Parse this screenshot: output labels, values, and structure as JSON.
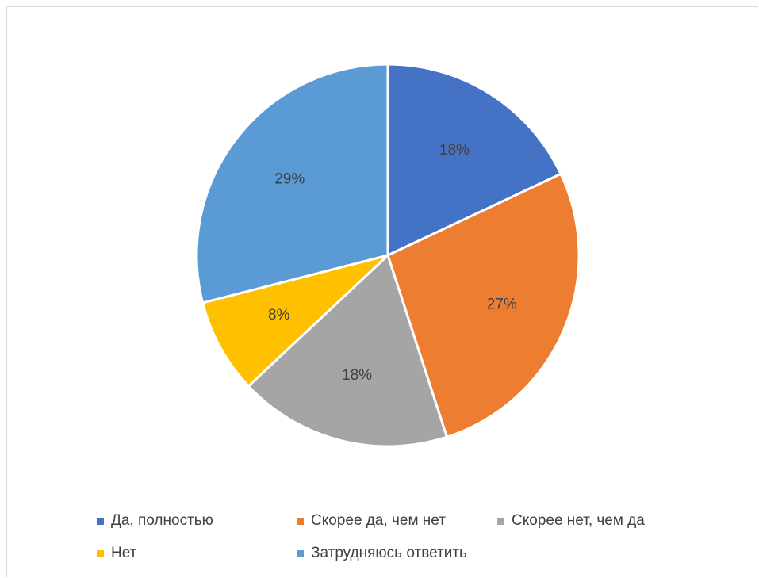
{
  "chart_data": {
    "type": "pie",
    "title": "",
    "labels": [
      "Да, полностью",
      "Скорее да, чем нет",
      "Скорее нет, чем да",
      "Нет",
      "Затрудняюсь ответить"
    ],
    "values": [
      18,
      27,
      18,
      8,
      29
    ],
    "value_labels": [
      "18%",
      "27%",
      "18%",
      "8%",
      "29%"
    ],
    "colors": [
      "#4472C4",
      "#ED7D31",
      "#A5A5A5",
      "#FFC000",
      "#5B9BD5"
    ],
    "legend_position": "bottom",
    "start_angle": "top",
    "direction": "clockwise"
  }
}
